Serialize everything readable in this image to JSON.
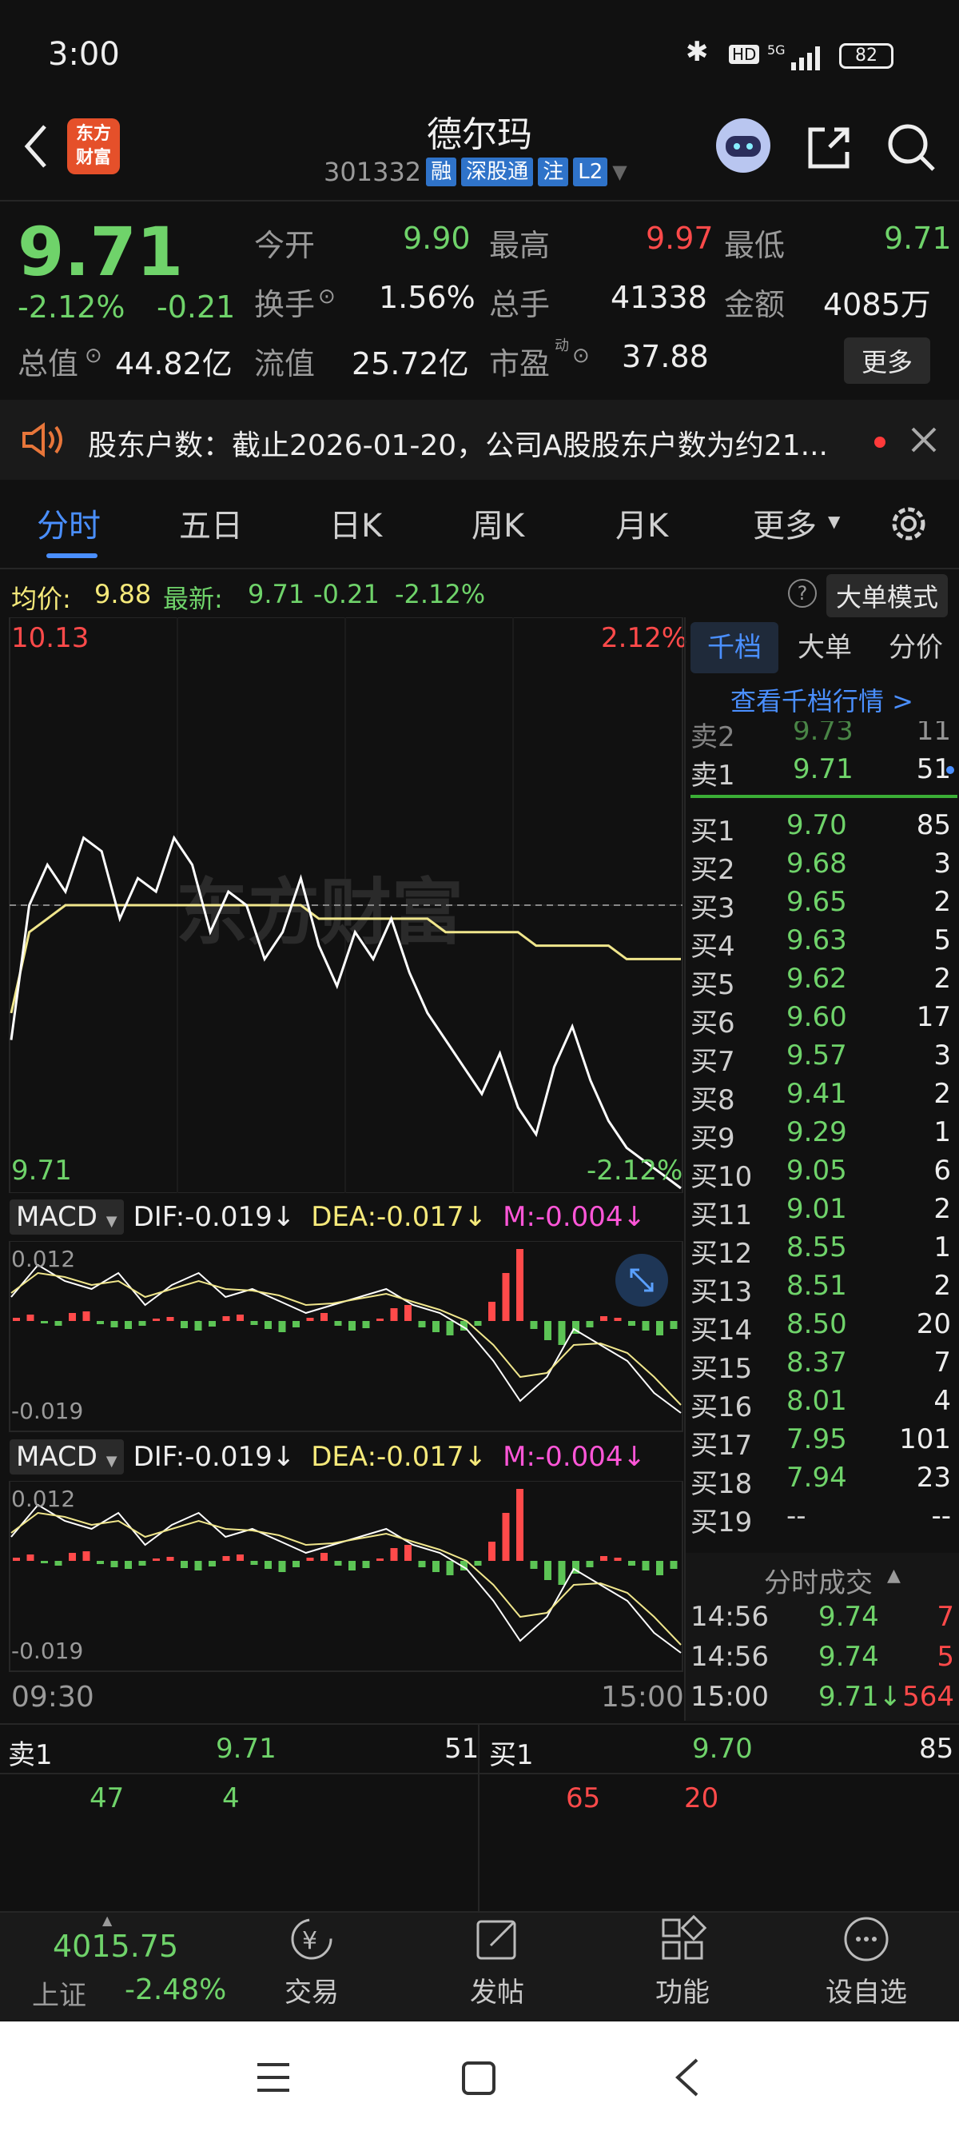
{
  "status_bar": {
    "time": "3:00",
    "battery": "82"
  },
  "header": {
    "logo_line1": "东方",
    "logo_line2": "财富",
    "title": "德尔玛",
    "code": "301332",
    "badges": [
      "融",
      "深股通",
      "注",
      "L2"
    ]
  },
  "quote": {
    "price": "9.71",
    "change_pct": "-2.12%",
    "change": "-0.21",
    "open_label": "今开",
    "open": "9.90",
    "high_label": "最高",
    "high": "9.97",
    "low_label": "最低",
    "low": "9.71",
    "turnover_label": "换手",
    "turnover": "1.56%",
    "volume_label": "总手",
    "volume": "41338",
    "amount_label": "金额",
    "amount": "4085万",
    "mktcap_label": "总值",
    "mktcap": "44.82亿",
    "float_label": "流值",
    "float": "25.72亿",
    "pe_label": "市盈",
    "pe_sup": "动",
    "pe": "37.88",
    "more_label": "更多"
  },
  "notice": {
    "text": "股东户数：截止2026-01-20，公司A股股东户数为约21..."
  },
  "tabs": [
    "分时",
    "五日",
    "日K",
    "周K",
    "月K",
    "更多"
  ],
  "legend_bar": {
    "avg_label": "均价:",
    "avg": "9.88",
    "latest_label": "最新:",
    "latest": "9.71",
    "chg": "-0.21",
    "pct": "-2.12%",
    "big_order_mode": "大单模式"
  },
  "chart": {
    "y_top": "10.13",
    "pct_top": "2.12%",
    "y_bottom": "9.71",
    "pct_bottom": "-2.12%",
    "watermark": "东方财富",
    "time_start": "09:30",
    "time_end": "15:00"
  },
  "macd": {
    "name": "MACD",
    "dif": "DIF:-0.019↓",
    "dea": "DEA:-0.017↓",
    "m": "M:-0.004↓",
    "y_top": "0.012",
    "y_bottom": "-0.019"
  },
  "book": {
    "tabs": [
      "千档",
      "大单",
      "分价"
    ],
    "link": "查看千档行情 >",
    "asks": [
      {
        "label": "卖2",
        "price": "9.73",
        "vol": "11"
      },
      {
        "label": "卖1",
        "price": "9.71",
        "vol": "51"
      }
    ],
    "bids": [
      {
        "label": "买1",
        "price": "9.70",
        "vol": "85"
      },
      {
        "label": "买2",
        "price": "9.68",
        "vol": "3"
      },
      {
        "label": "买3",
        "price": "9.65",
        "vol": "2"
      },
      {
        "label": "买4",
        "price": "9.63",
        "vol": "5"
      },
      {
        "label": "买5",
        "price": "9.62",
        "vol": "2"
      },
      {
        "label": "买6",
        "price": "9.60",
        "vol": "17"
      },
      {
        "label": "买7",
        "price": "9.57",
        "vol": "3"
      },
      {
        "label": "买8",
        "price": "9.41",
        "vol": "2"
      },
      {
        "label": "买9",
        "price": "9.29",
        "vol": "1"
      },
      {
        "label": "买10",
        "price": "9.05",
        "vol": "6"
      },
      {
        "label": "买11",
        "price": "9.01",
        "vol": "2"
      },
      {
        "label": "买12",
        "price": "8.55",
        "vol": "1"
      },
      {
        "label": "买13",
        "price": "8.51",
        "vol": "2"
      },
      {
        "label": "买14",
        "price": "8.50",
        "vol": "20"
      },
      {
        "label": "买15",
        "price": "8.37",
        "vol": "7"
      },
      {
        "label": "买16",
        "price": "8.01",
        "vol": "4"
      },
      {
        "label": "买17",
        "price": "7.95",
        "vol": "101"
      },
      {
        "label": "买18",
        "price": "7.94",
        "vol": "23"
      },
      {
        "label": "买19",
        "price": "--",
        "vol": "--"
      }
    ],
    "trades_title": "分时成交",
    "trades": [
      {
        "time": "14:56",
        "price": "9.74",
        "vol": "7"
      },
      {
        "time": "14:56",
        "price": "9.74",
        "vol": "5"
      },
      {
        "time": "15:00",
        "price": "9.71↓",
        "vol": "564"
      }
    ]
  },
  "queue": {
    "ask_label": "卖1",
    "ask_price": "9.71",
    "ask_vol": "51",
    "bid_label": "买1",
    "bid_price": "9.70",
    "bid_vol": "85",
    "ask_orders": [
      "47",
      "4"
    ],
    "bid_orders": [
      "65",
      "20"
    ]
  },
  "bottom_bar": {
    "index_value": "4015.75",
    "index_name": "上证",
    "index_pct": "-2.48%",
    "items": [
      "交易",
      "发帖",
      "功能",
      "设自选"
    ]
  },
  "colors": {
    "up": "#ff4a4a",
    "down": "#6fd36a",
    "accent": "#4a8fff",
    "avg_line": "#f0e68c"
  },
  "chart_data": [
    {
      "type": "line",
      "ylim": [
        9.71,
        10.13
      ],
      "series": [
        {
          "values": [
            9.82,
            9.92,
            9.95,
            9.93,
            9.97,
            9.96,
            9.91,
            9.94,
            9.93,
            9.97,
            9.95,
            9.9,
            9.93,
            9.92,
            9.88,
            9.9,
            9.94,
            9.89,
            9.86,
            9.9,
            9.88,
            9.91,
            9.87,
            9.84,
            9.82,
            9.8,
            9.78,
            9.81,
            9.77,
            9.75,
            9.8,
            9.83,
            9.79,
            9.76,
            9.74,
            9.73,
            9.72,
            9.71
          ]
        },
        {
          "values": [
            9.84,
            9.9,
            9.91,
            9.92,
            9.92,
            9.92,
            9.92,
            9.92,
            9.92,
            9.92,
            9.92,
            9.92,
            9.92,
            9.92,
            9.92,
            9.92,
            9.92,
            9.91,
            9.91,
            9.91,
            9.91,
            9.91,
            9.91,
            9.91,
            9.9,
            9.9,
            9.9,
            9.9,
            9.9,
            9.89,
            9.89,
            9.89,
            9.89,
            9.89,
            9.88,
            9.88,
            9.88,
            9.88
          ]
        }
      ]
    }
  ]
}
